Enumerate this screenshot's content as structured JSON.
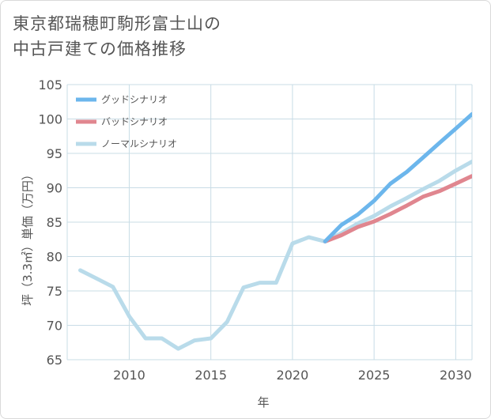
{
  "chart_data": {
    "type": "line",
    "title": [
      "東京都瑞穂町駒形富士山の",
      "中古戸建ての価格推移"
    ],
    "xlabel": "年",
    "ylabel": "坪（3.3㎡）単価（万円）",
    "xlim": [
      2006.2,
      2031
    ],
    "ylim": [
      65,
      105
    ],
    "xticks": [
      2010,
      2015,
      2020,
      2025,
      2030
    ],
    "yticks": [
      65,
      70,
      75,
      80,
      85,
      90,
      95,
      100,
      105
    ],
    "grid": true,
    "legend_position": "top-left",
    "series": [
      {
        "name": "グッドシナリオ",
        "color": "#6cb6ec",
        "x": [
          2022,
          2023,
          2024,
          2025,
          2026,
          2027,
          2028,
          2029,
          2030,
          2031
        ],
        "y": [
          82.2,
          84.6,
          86.1,
          88.1,
          90.6,
          92.3,
          94.4,
          96.5,
          98.6,
          100.7
        ]
      },
      {
        "name": "バッドシナリオ",
        "color": "#e0868f",
        "x": [
          2022,
          2023,
          2024,
          2025,
          2026,
          2027,
          2028,
          2029,
          2030,
          2031
        ],
        "y": [
          82.2,
          83.1,
          84.3,
          85.1,
          86.2,
          87.4,
          88.7,
          89.5,
          90.6,
          91.7
        ]
      },
      {
        "name": "ノーマルシナリオ",
        "color": "#b9dbea",
        "x": [
          2007,
          2008,
          2009,
          2010,
          2011,
          2012,
          2013,
          2014,
          2015,
          2016,
          2017,
          2018,
          2019,
          2020,
          2021,
          2022,
          2023,
          2024,
          2025,
          2026,
          2027,
          2028,
          2029,
          2030,
          2031
        ],
        "y": [
          78,
          76.8,
          75.6,
          71.3,
          68.1,
          68.1,
          66.6,
          67.8,
          68.1,
          70.5,
          75.5,
          76.2,
          76.2,
          81.9,
          82.8,
          82.2,
          83.4,
          84.8,
          85.9,
          87.3,
          88.5,
          89.8,
          91.0,
          92.5,
          93.8
        ]
      }
    ]
  }
}
